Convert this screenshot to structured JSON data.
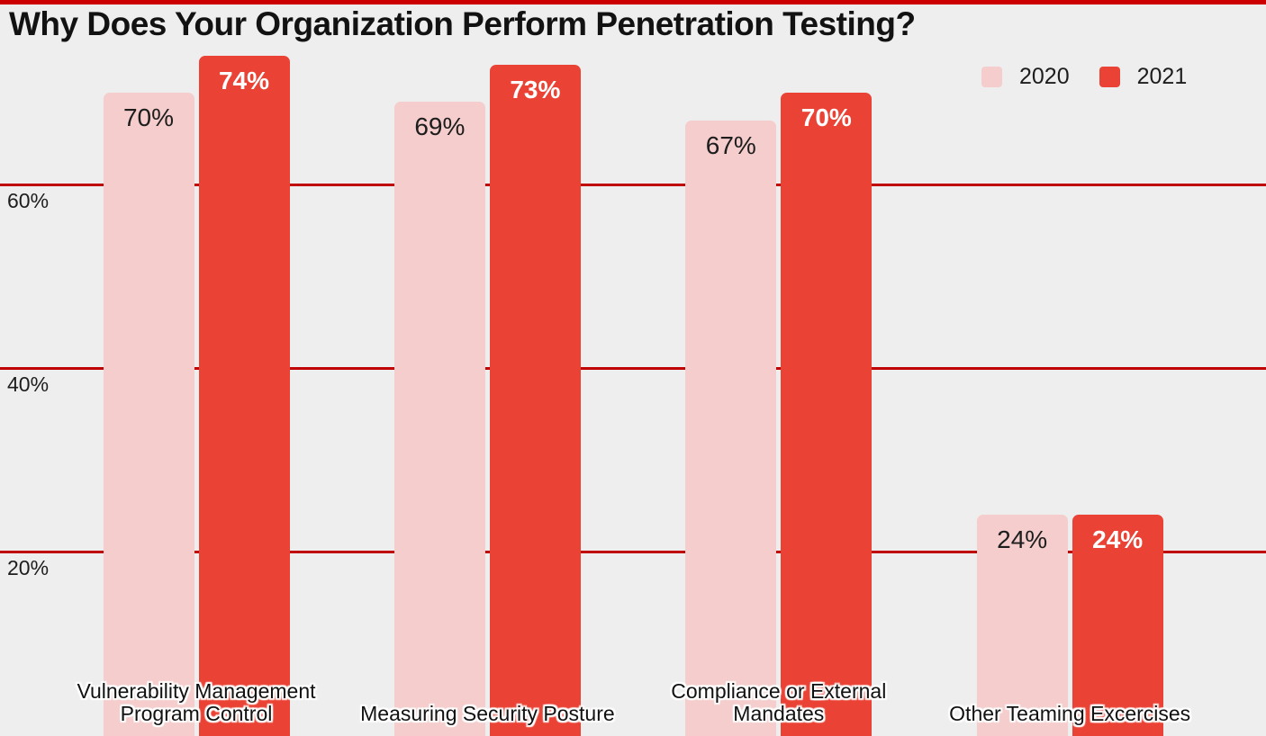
{
  "chart_data": {
    "type": "bar",
    "title": "Why Does Your Organization Perform Penetration Testing?",
    "categories": [
      "Vulnerability Management\nProgram Control",
      "Measuring Security Posture",
      "Compliance or External\nMandates",
      "Other Teaming Excercises"
    ],
    "series": [
      {
        "name": "2020",
        "values": [
          70,
          69,
          67,
          24
        ]
      },
      {
        "name": "2021",
        "values": [
          74,
          73,
          70,
          24
        ]
      }
    ],
    "value_suffix": "%",
    "yticks": [
      {
        "value": 60,
        "label": "60%"
      },
      {
        "value": 40,
        "label": "40%"
      },
      {
        "value": 20,
        "label": "20%"
      }
    ],
    "ylim": [
      0,
      80.2
    ],
    "grid": "horizontal",
    "legend_position": "top-right"
  },
  "colors": {
    "background": "#eeeeee",
    "accent_top_line": "#cc0000",
    "gridline": "#c00000",
    "series_2020": "#f4cdcc",
    "series_2021": "#ea4335",
    "value_label_2020": "#1d1d1d",
    "value_label_2021": "#ffffff",
    "title_text": "#121212",
    "axis_text": "#1d1d1d"
  }
}
